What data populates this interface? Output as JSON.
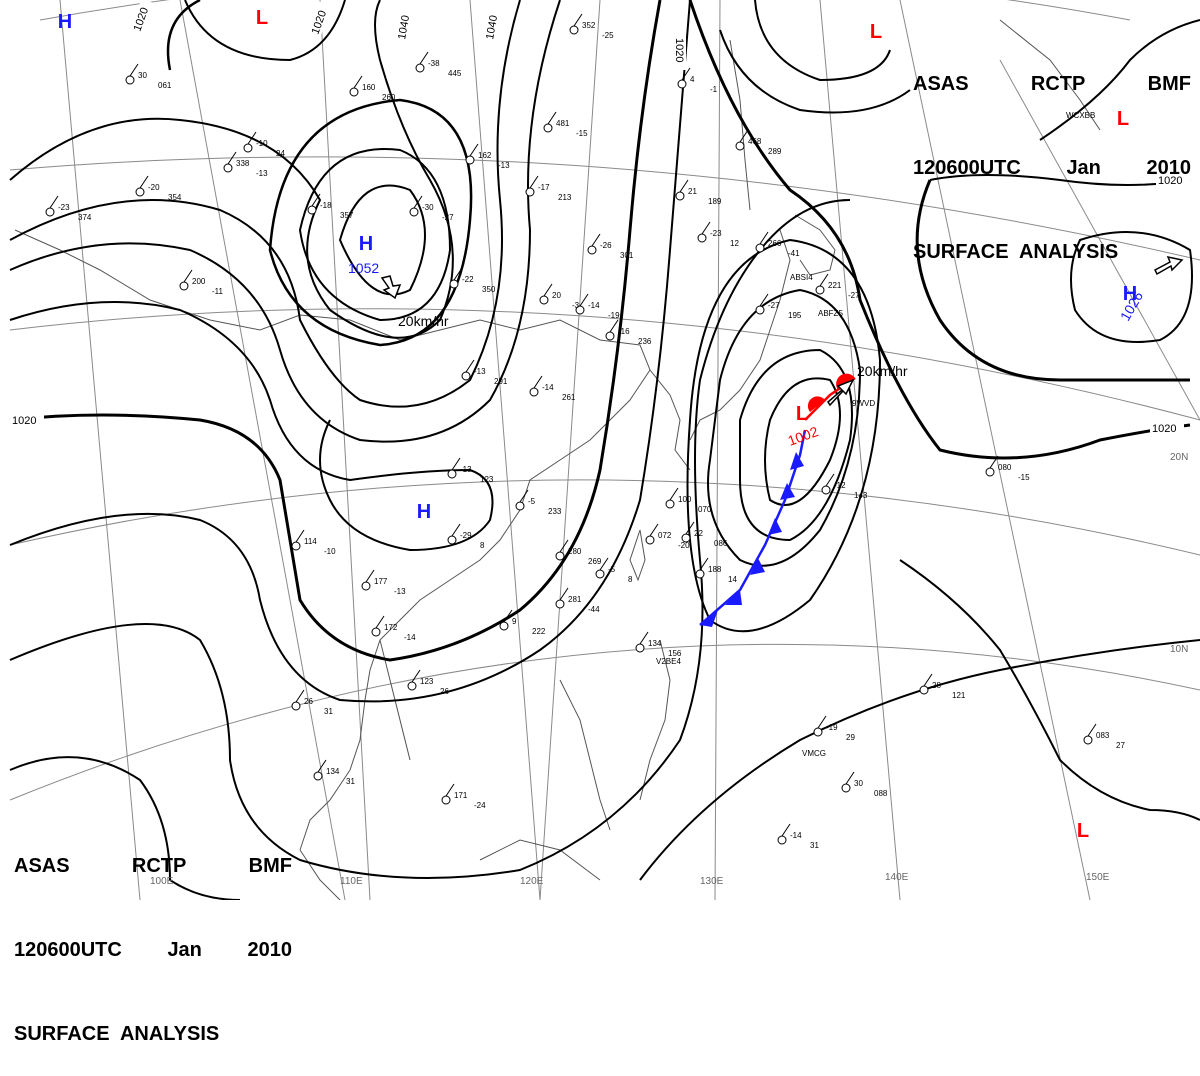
{
  "title": {
    "line1": [
      "ASAS",
      "RCTP",
      "BMF"
    ],
    "line2": [
      "120600UTC",
      "Jan",
      "2010"
    ],
    "line3": "SURFACE  ANALYSIS"
  },
  "isobar_labels": [
    "1020",
    "1020",
    "1040",
    "1040",
    "1020",
    "1020",
    "1020",
    "1020"
  ],
  "pressure_centers": [
    {
      "type": "H",
      "value": "",
      "color": "#1a1aff"
    },
    {
      "type": "L",
      "value": "",
      "color": "#ff0000"
    },
    {
      "type": "H",
      "value": "1052",
      "color": "#1a1aff"
    },
    {
      "type": "H",
      "value": "",
      "color": "#1a1aff"
    },
    {
      "type": "L",
      "value": "1002",
      "color": "#ff0000"
    },
    {
      "type": "H",
      "value": "1026",
      "color": "#1a1aff"
    },
    {
      "type": "L",
      "value": "",
      "color": "#ff0000"
    },
    {
      "type": "L",
      "value": "",
      "color": "#ff0000"
    },
    {
      "type": "L",
      "value": "",
      "color": "#ff0000"
    }
  ],
  "motion_labels": [
    "20km/hr",
    "20km/hr"
  ],
  "longitude_labels": [
    "100E",
    "110E",
    "120E",
    "130E",
    "140E",
    "150E"
  ],
  "latitude_labels": [
    "20N",
    "10N"
  ],
  "ship_ids": [
    "WCXBB",
    "ABSI4",
    "ABFZ5",
    "9WVD",
    "V2BE4",
    "VMCG"
  ],
  "station_values": [
    "-38",
    "445",
    "-30",
    "-27",
    "481",
    "-15",
    "-17",
    "213",
    "-26",
    "301",
    "-14",
    "-19",
    "20",
    "-3",
    "-16",
    "236",
    "-14",
    "261",
    "-13",
    "123",
    "-5",
    "233",
    "-29",
    "8",
    "280",
    "269",
    "-5",
    "8",
    "281",
    "-44",
    "9",
    "222",
    "177",
    "-13",
    "172",
    "-14",
    "21",
    "189",
    "-23",
    "12",
    "266",
    "-41",
    "221",
    "-27",
    "-27",
    "195",
    "-12",
    "143",
    "100",
    "070",
    "072",
    "-20",
    "22",
    "086",
    "134",
    "156",
    "188",
    "14",
    "114",
    "-10",
    "26",
    "31",
    "134",
    "31",
    "123",
    "26",
    "171",
    "-24",
    "28",
    "121",
    "-19",
    "29",
    "30",
    "088",
    "-14",
    "31",
    "083",
    "27",
    "080",
    "-15",
    "30",
    "061",
    "-10",
    "24",
    "162",
    "-13",
    "-18",
    "357",
    "-20",
    "354",
    "-23",
    "374",
    "-22",
    "350",
    "-13",
    "291",
    "352",
    "-25",
    "468",
    "289",
    "200",
    "-11",
    "338",
    "-13",
    "160",
    "260",
    "4",
    "-1"
  ],
  "colors": {
    "isobar": "#000000",
    "grid": "#808080",
    "coast": "#555555",
    "high": "#1a1aff",
    "low": "#ff0000",
    "cold_front": "#1a1aff",
    "warm_front": "#ff0000"
  }
}
